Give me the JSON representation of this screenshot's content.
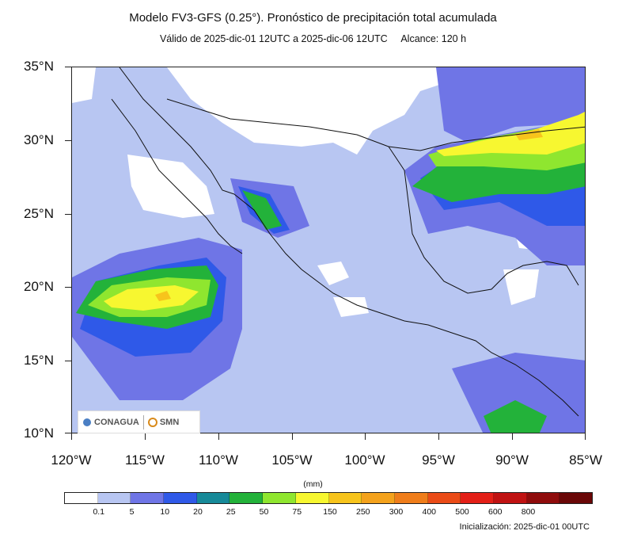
{
  "header": {
    "title": "Modelo FV3-GFS (0.25°). Pronóstico de precipitación total acumulada",
    "subtitle_valid": "Válido de 2025-dic-01 12UTC a 2025-dic-06 12UTC",
    "subtitle_range": "Alcance: 120 h"
  },
  "map": {
    "lat_labels": [
      "35°N",
      "30°N",
      "25°N",
      "20°N",
      "15°N",
      "10°N"
    ],
    "lon_labels": [
      "120°W",
      "115°W",
      "110°W",
      "105°W",
      "100°W",
      "95°W",
      "90°W",
      "85°W"
    ],
    "ocean_base_color": "#b8c6f2"
  },
  "logos": {
    "conagua": "CONAGUA",
    "smn": "SMN"
  },
  "legend": {
    "units": "(mm)",
    "colors": [
      "#ffffff",
      "#b8c6f2",
      "#6f75e6",
      "#2f59e8",
      "#178a99",
      "#23b23a",
      "#8fe62f",
      "#f7f730",
      "#f7c41c",
      "#f4a21c",
      "#ef7d1a",
      "#ea4b17",
      "#e31f17",
      "#c01212",
      "#8f0c0c",
      "#6a0707"
    ],
    "labels": [
      "0.1",
      "5",
      "10",
      "20",
      "25",
      "50",
      "75",
      "150",
      "250",
      "300",
      "400",
      "500",
      "600",
      "800"
    ]
  },
  "footer": {
    "initialization": "Inicialización: 2025-dic-01 00UTC"
  }
}
